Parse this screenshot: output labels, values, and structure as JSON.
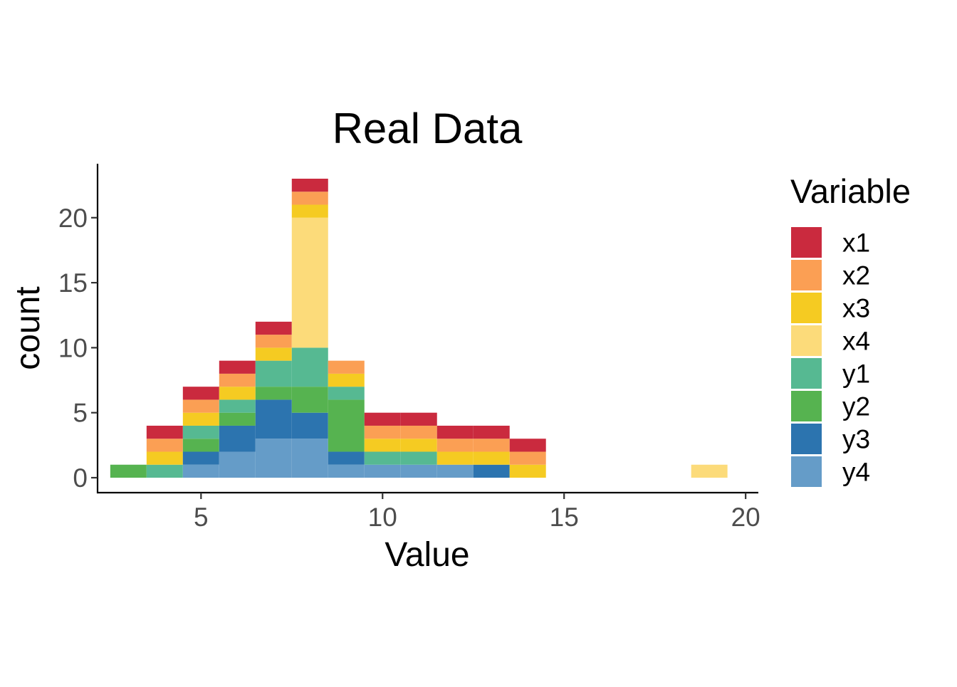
{
  "chart_data": {
    "type": "bar",
    "title": "Real Data",
    "xlabel": "Value",
    "ylabel": "count",
    "xlim": [
      2.15,
      20.35
    ],
    "ylim": [
      -1.15,
      24.15
    ],
    "x_ticks": [
      5,
      10,
      15,
      20
    ],
    "y_ticks": [
      0,
      5,
      10,
      15,
      20
    ],
    "grid": false,
    "bin_width": 1,
    "stacking_order_bottom_to_top": [
      "y4",
      "y3",
      "y2",
      "y1",
      "x4",
      "x3",
      "x2",
      "x1"
    ],
    "legend": {
      "title": "Variable",
      "placement": "right",
      "entries": [
        "x1",
        "x2",
        "x3",
        "x4",
        "y1",
        "y2",
        "y3",
        "y4"
      ]
    },
    "x": [
      3,
      4,
      5,
      6,
      7,
      8,
      9,
      10,
      11,
      12,
      13,
      14,
      15,
      16,
      17,
      18,
      19
    ],
    "series": [
      {
        "name": "x1",
        "color": "#CA2A3E",
        "values": [
          0,
          1,
          1,
          1,
          1,
          1,
          0,
          1,
          1,
          1,
          1,
          1,
          0,
          0,
          0,
          0,
          0
        ]
      },
      {
        "name": "x2",
        "color": "#FB9F54",
        "values": [
          0,
          1,
          1,
          1,
          1,
          1,
          1,
          1,
          1,
          1,
          1,
          1,
          0,
          0,
          0,
          0,
          0
        ]
      },
      {
        "name": "x3",
        "color": "#F5CB22",
        "values": [
          0,
          1,
          1,
          1,
          1,
          1,
          1,
          1,
          1,
          1,
          1,
          1,
          0,
          0,
          0,
          0,
          0
        ]
      },
      {
        "name": "x4",
        "color": "#FCDB7A",
        "values": [
          0,
          0,
          0,
          0,
          0,
          10,
          0,
          0,
          0,
          0,
          0,
          0,
          0,
          0,
          0,
          0,
          1
        ]
      },
      {
        "name": "y1",
        "color": "#56B992",
        "values": [
          0,
          1,
          1,
          1,
          2,
          3,
          1,
          1,
          1,
          0,
          0,
          0,
          0,
          0,
          0,
          0,
          0
        ]
      },
      {
        "name": "y2",
        "color": "#56B350",
        "values": [
          1,
          0,
          1,
          1,
          1,
          2,
          4,
          0,
          0,
          0,
          0,
          0,
          0,
          0,
          0,
          0,
          0
        ]
      },
      {
        "name": "y3",
        "color": "#2C74AF",
        "values": [
          0,
          0,
          1,
          2,
          3,
          2,
          1,
          0,
          0,
          0,
          1,
          0,
          0,
          0,
          0,
          0,
          0
        ]
      },
      {
        "name": "y4",
        "color": "#659CC8",
        "values": [
          0,
          0,
          1,
          2,
          3,
          3,
          1,
          1,
          1,
          1,
          0,
          0,
          0,
          0,
          0,
          0,
          0
        ]
      }
    ]
  }
}
